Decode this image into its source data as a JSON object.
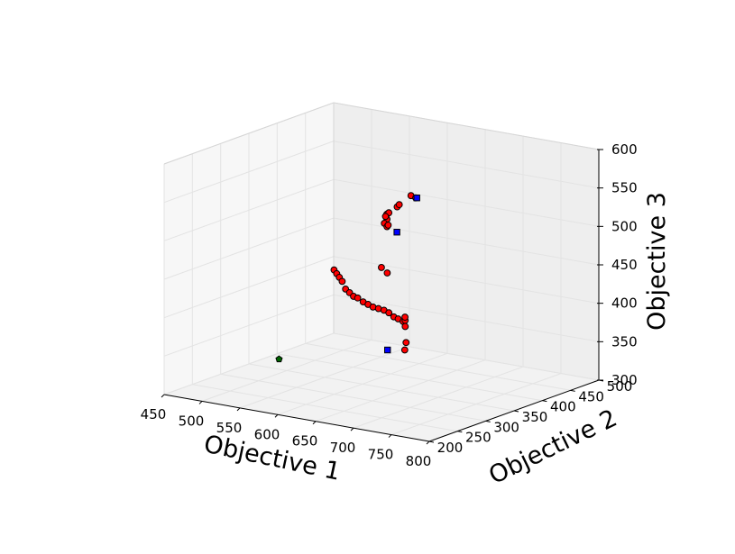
{
  "chart_data": {
    "type": "scatter",
    "projection": "3d",
    "grid": true,
    "x_axis": {
      "label": "Objective 1",
      "range": [
        450,
        800
      ],
      "ticks": [
        "450",
        "500",
        "550",
        "600",
        "650",
        "700",
        "750",
        "800"
      ]
    },
    "y_axis": {
      "label": "Objective 2",
      "range": [
        200,
        500
      ],
      "ticks": [
        "200",
        "250",
        "300",
        "350",
        "400",
        "450",
        "500"
      ]
    },
    "z_axis": {
      "label": "Objective 3",
      "range": [
        300,
        600
      ],
      "ticks": [
        "300",
        "350",
        "400",
        "450",
        "500",
        "550",
        "600"
      ]
    },
    "series": [
      {
        "marker": "circle",
        "color": "#ff0000",
        "points": [
          [
            535,
            480,
            475
          ],
          [
            537,
            481,
            477
          ],
          [
            545,
            485,
            485
          ],
          [
            547,
            486,
            488
          ],
          [
            558,
            492,
            500
          ],
          [
            562,
            495,
            497
          ],
          [
            610,
            370,
            448
          ],
          [
            636,
            345,
            522
          ],
          [
            640,
            335,
            520
          ],
          [
            643,
            333,
            530
          ],
          [
            655,
            320,
            462
          ],
          [
            692,
            270,
            542
          ],
          [
            695,
            268,
            545
          ],
          [
            540,
            380,
            430
          ],
          [
            542,
            382,
            425
          ],
          [
            544,
            384,
            420
          ],
          [
            547,
            385,
            415
          ],
          [
            550,
            387,
            405
          ],
          [
            553,
            390,
            400
          ],
          [
            556,
            393,
            395
          ],
          [
            560,
            395,
            393
          ],
          [
            565,
            398,
            388
          ],
          [
            570,
            400,
            385
          ],
          [
            575,
            402,
            382
          ],
          [
            580,
            405,
            380
          ],
          [
            585,
            408,
            378
          ],
          [
            590,
            410,
            375
          ],
          [
            595,
            412,
            370
          ],
          [
            600,
            413,
            368
          ],
          [
            605,
            415,
            365
          ],
          [
            610,
            412,
            368
          ],
          [
            615,
            405,
            375
          ],
          [
            625,
            392,
            368
          ],
          [
            650,
            360,
            360
          ],
          [
            652,
            355,
            352
          ]
        ]
      },
      {
        "marker": "square",
        "color": "#0000ff",
        "points": [
          [
            565,
            493,
            498
          ],
          [
            720,
            250,
            545
          ],
          [
            633,
            350,
            350
          ]
        ]
      },
      {
        "marker": "pentagon",
        "color": "#006400",
        "points": [
          [
            548,
            272,
            344
          ]
        ]
      }
    ]
  }
}
